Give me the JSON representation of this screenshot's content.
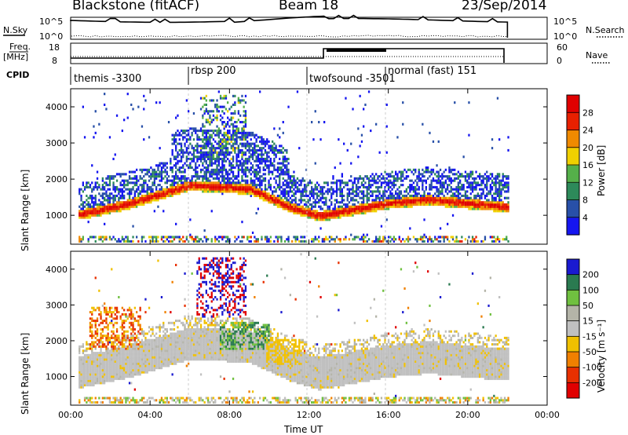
{
  "header": {
    "station": "Blackstone (fitACF)",
    "beam": "Beam 18",
    "date": "23/Sep/2014"
  },
  "panels": {
    "nsky_label": "N.Sky",
    "nsky_ticks": [
      "10^5",
      "10^0"
    ],
    "nsearch_label": "N.Search",
    "nsearch_ticks": [
      "10^5",
      "10^0"
    ],
    "freq_label_1": "Freq.",
    "freq_label_2": "[MHz]",
    "freq_ticks": [
      "18",
      "8"
    ],
    "nave_label": "Nave",
    "nave_ticks": [
      "60",
      "0"
    ],
    "cpid_label": "CPID"
  },
  "cpid_segments": [
    {
      "name": "themis -3300",
      "start_hour": 0.0
    },
    {
      "name": "rbsp 200",
      "start_hour": 6.0
    },
    {
      "name": "twofsound -3501",
      "start_hour": 12.0
    },
    {
      "name": "normal (fast) 151",
      "start_hour": 16.0
    }
  ],
  "axes": {
    "x_label": "Time UT",
    "x_ticks": [
      "00:00",
      "04:00",
      "08:00",
      "12:00",
      "16:00",
      "20:00",
      "00:00"
    ],
    "y_label": "Slant Range [km]",
    "y_ticks": [
      "1000",
      "2000",
      "3000",
      "4000"
    ]
  },
  "colorbars": {
    "power": {
      "label": "Power [dB]",
      "ticks": [
        "4",
        "8",
        "12",
        "16",
        "20",
        "24",
        "28"
      ],
      "colors": [
        "#1515f0",
        "#2850a8",
        "#2d8a5a",
        "#55b04a",
        "#f0d000",
        "#f08a00",
        "#e82000",
        "#e00000"
      ]
    },
    "velocity": {
      "label": "Velocity [m s⁻¹]",
      "ticks": [
        "200",
        "100",
        "50",
        "15",
        "-15",
        "-50",
        "-100",
        "-200"
      ],
      "colors": [
        "#1a1ad0",
        "#2a7a50",
        "#70c040",
        "#b4b4a8",
        "#c0c0c0",
        "#f0c000",
        "#f08000",
        "#e83000",
        "#e00000"
      ]
    }
  },
  "chart_data": [
    {
      "type": "heatmap",
      "title": "Power",
      "x": "Time UT",
      "y": "Slant Range [km]",
      "xlim": [
        0,
        24
      ],
      "ylim": [
        200,
        4500
      ],
      "data_until_hour": 22,
      "main_band_range_km": [
        [
          0.5,
          1000
        ],
        [
          3,
          1300
        ],
        [
          6,
          1800
        ],
        [
          9,
          1700
        ],
        [
          11,
          1200
        ],
        [
          12.5,
          950
        ],
        [
          14,
          1100
        ],
        [
          16,
          1300
        ],
        [
          18,
          1400
        ],
        [
          20,
          1300
        ],
        [
          22,
          1200
        ]
      ]
    },
    {
      "type": "heatmap",
      "title": "Velocity",
      "x": "Time UT",
      "y": "Slant Range [km]",
      "xlim": [
        0,
        24
      ],
      "ylim": [
        200,
        4500
      ],
      "data_until_hour": 22
    }
  ]
}
